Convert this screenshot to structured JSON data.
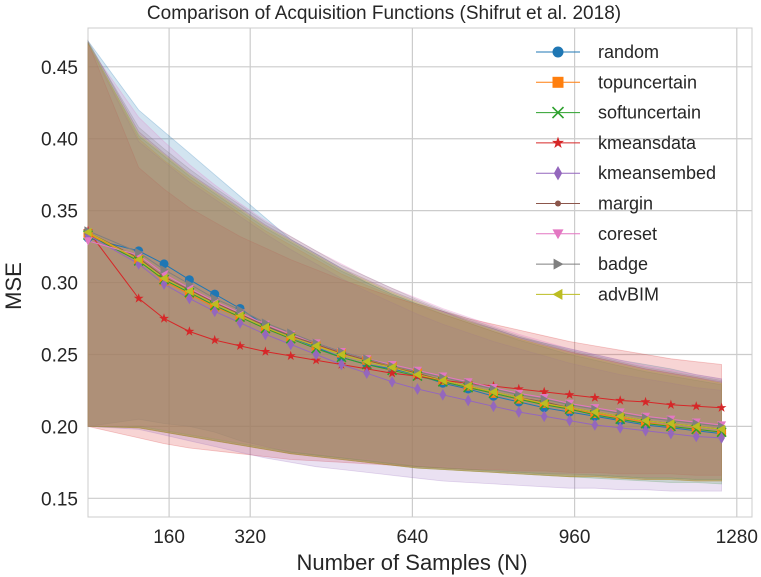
{
  "chart_data": {
    "type": "line",
    "title": "Comparison of Acquisition Functions (Shifrut et al. 2018)",
    "xlabel": "Number of Samples (N)",
    "ylabel": "MSE",
    "xlim": [
      0,
      1310
    ],
    "ylim": [
      0.137,
      0.477
    ],
    "xticks": [
      160,
      320,
      640,
      960,
      1280
    ],
    "yticks": [
      0.15,
      0.2,
      0.25,
      0.3,
      0.35,
      0.4,
      0.45
    ],
    "ytick_labels": [
      "0.15",
      "0.20",
      "0.25",
      "0.30",
      "0.35",
      "0.40",
      "0.45"
    ],
    "grid": true,
    "legend_position": "top-right",
    "x": [
      0,
      100,
      150,
      200,
      250,
      300,
      350,
      400,
      450,
      500,
      550,
      600,
      650,
      700,
      750,
      800,
      850,
      900,
      950,
      1000,
      1050,
      1100,
      1150,
      1200,
      1250
    ],
    "series": [
      {
        "name": "random",
        "color": "#1f77b4",
        "marker": "circle",
        "values": [
          0.331,
          0.322,
          0.313,
          0.302,
          0.292,
          0.282,
          0.27,
          0.262,
          0.255,
          0.248,
          0.243,
          0.24,
          0.236,
          0.23,
          0.226,
          0.221,
          0.217,
          0.213,
          0.21,
          0.207,
          0.204,
          0.201,
          0.199,
          0.197,
          0.195
        ],
        "upper": [
          0.468,
          0.42,
          0.405,
          0.39,
          0.375,
          0.36,
          0.345,
          0.33,
          0.32,
          0.31,
          0.3,
          0.292,
          0.285,
          0.28,
          0.273,
          0.268,
          0.262,
          0.258,
          0.254,
          0.25,
          0.246,
          0.243,
          0.24,
          0.236,
          0.233
        ],
        "lower": [
          0.2,
          0.205,
          0.202,
          0.2,
          0.196,
          0.19,
          0.186,
          0.182,
          0.18,
          0.178,
          0.176,
          0.174,
          0.172,
          0.171,
          0.17,
          0.169,
          0.168,
          0.167,
          0.167,
          0.166,
          0.165,
          0.164,
          0.164,
          0.163,
          0.163
        ]
      },
      {
        "name": "topuncertain",
        "color": "#ff7f0e",
        "marker": "square",
        "values": [
          0.334,
          0.316,
          0.301,
          0.292,
          0.283,
          0.276,
          0.268,
          0.262,
          0.256,
          0.251,
          0.246,
          0.242,
          0.237,
          0.232,
          0.228,
          0.223,
          0.219,
          0.216,
          0.212,
          0.209,
          0.206,
          0.203,
          0.2,
          0.198,
          0.196
        ],
        "upper": [
          0.466,
          0.4,
          0.385,
          0.372,
          0.36,
          0.348,
          0.336,
          0.326,
          0.316,
          0.306,
          0.298,
          0.291,
          0.284,
          0.278,
          0.272,
          0.266,
          0.261,
          0.256,
          0.252,
          0.248,
          0.244,
          0.24,
          0.237,
          0.234,
          0.23
        ],
        "lower": [
          0.2,
          0.199,
          0.196,
          0.193,
          0.19,
          0.187,
          0.184,
          0.181,
          0.179,
          0.177,
          0.175,
          0.173,
          0.171,
          0.17,
          0.169,
          0.168,
          0.167,
          0.166,
          0.165,
          0.165,
          0.164,
          0.163,
          0.163,
          0.162,
          0.162
        ]
      },
      {
        "name": "softuncertain",
        "color": "#2ca02c",
        "marker": "x",
        "values": [
          0.333,
          0.315,
          0.302,
          0.293,
          0.284,
          0.276,
          0.268,
          0.261,
          0.254,
          0.248,
          0.243,
          0.239,
          0.235,
          0.231,
          0.227,
          0.223,
          0.219,
          0.215,
          0.212,
          0.208,
          0.205,
          0.202,
          0.2,
          0.198,
          0.196
        ],
        "upper": [
          0.467,
          0.402,
          0.388,
          0.374,
          0.362,
          0.35,
          0.338,
          0.328,
          0.318,
          0.308,
          0.3,
          0.292,
          0.285,
          0.278,
          0.272,
          0.266,
          0.26,
          0.255,
          0.25,
          0.246,
          0.242,
          0.238,
          0.235,
          0.232,
          0.229
        ],
        "lower": [
          0.2,
          0.199,
          0.196,
          0.193,
          0.19,
          0.187,
          0.184,
          0.181,
          0.179,
          0.177,
          0.175,
          0.173,
          0.171,
          0.17,
          0.169,
          0.168,
          0.167,
          0.166,
          0.165,
          0.164,
          0.163,
          0.162,
          0.161,
          0.161,
          0.16
        ]
      },
      {
        "name": "kmeansdata",
        "color": "#d62728",
        "marker": "star",
        "values": [
          0.336,
          0.289,
          0.275,
          0.266,
          0.26,
          0.256,
          0.252,
          0.249,
          0.246,
          0.243,
          0.24,
          0.237,
          0.235,
          0.232,
          0.23,
          0.228,
          0.226,
          0.224,
          0.222,
          0.22,
          0.218,
          0.217,
          0.215,
          0.214,
          0.213
        ],
        "upper": [
          0.467,
          0.38,
          0.365,
          0.352,
          0.342,
          0.332,
          0.324,
          0.316,
          0.309,
          0.302,
          0.296,
          0.29,
          0.285,
          0.28,
          0.275,
          0.271,
          0.267,
          0.263,
          0.259,
          0.256,
          0.253,
          0.25,
          0.247,
          0.245,
          0.243
        ],
        "lower": [
          0.2,
          0.192,
          0.188,
          0.185,
          0.183,
          0.181,
          0.179,
          0.177,
          0.176,
          0.175,
          0.174,
          0.173,
          0.172,
          0.171,
          0.17,
          0.17,
          0.169,
          0.169,
          0.168,
          0.168,
          0.167,
          0.167,
          0.167,
          0.166,
          0.166
        ]
      },
      {
        "name": "kmeansembed",
        "color": "#9467bd",
        "marker": "diamond",
        "values": [
          0.333,
          0.313,
          0.299,
          0.289,
          0.28,
          0.272,
          0.264,
          0.257,
          0.25,
          0.243,
          0.237,
          0.231,
          0.226,
          0.222,
          0.218,
          0.214,
          0.21,
          0.207,
          0.204,
          0.201,
          0.199,
          0.197,
          0.195,
          0.193,
          0.192
        ],
        "upper": [
          0.466,
          0.398,
          0.384,
          0.37,
          0.358,
          0.346,
          0.334,
          0.323,
          0.313,
          0.303,
          0.294,
          0.286,
          0.278,
          0.271,
          0.265,
          0.259,
          0.254,
          0.249,
          0.244,
          0.24,
          0.236,
          0.233,
          0.23,
          0.227,
          0.225
        ],
        "lower": [
          0.2,
          0.198,
          0.194,
          0.19,
          0.186,
          0.182,
          0.178,
          0.175,
          0.172,
          0.17,
          0.168,
          0.166,
          0.164,
          0.162,
          0.161,
          0.16,
          0.159,
          0.158,
          0.157,
          0.157,
          0.156,
          0.156,
          0.155,
          0.155,
          0.155
        ]
      },
      {
        "name": "margin",
        "color": "#8c564b",
        "marker": "dot",
        "values": [
          0.335,
          0.317,
          0.304,
          0.295,
          0.286,
          0.278,
          0.27,
          0.263,
          0.257,
          0.251,
          0.246,
          0.241,
          0.237,
          0.232,
          0.228,
          0.224,
          0.22,
          0.217,
          0.213,
          0.21,
          0.207,
          0.204,
          0.202,
          0.2,
          0.198
        ],
        "upper": [
          0.468,
          0.405,
          0.39,
          0.376,
          0.364,
          0.352,
          0.34,
          0.33,
          0.32,
          0.31,
          0.302,
          0.294,
          0.287,
          0.28,
          0.274,
          0.268,
          0.262,
          0.257,
          0.252,
          0.248,
          0.244,
          0.24,
          0.237,
          0.234,
          0.231
        ],
        "lower": [
          0.2,
          0.199,
          0.196,
          0.193,
          0.19,
          0.187,
          0.184,
          0.181,
          0.179,
          0.177,
          0.175,
          0.173,
          0.171,
          0.17,
          0.169,
          0.168,
          0.167,
          0.166,
          0.165,
          0.165,
          0.164,
          0.163,
          0.163,
          0.162,
          0.162
        ]
      },
      {
        "name": "coreset",
        "color": "#e377c2",
        "marker": "triangle-down",
        "values": [
          0.329,
          0.319,
          0.306,
          0.296,
          0.287,
          0.279,
          0.271,
          0.264,
          0.258,
          0.252,
          0.247,
          0.243,
          0.239,
          0.235,
          0.231,
          0.227,
          0.223,
          0.22,
          0.216,
          0.213,
          0.21,
          0.207,
          0.205,
          0.203,
          0.201
        ],
        "upper": [
          0.465,
          0.415,
          0.398,
          0.382,
          0.368,
          0.355,
          0.343,
          0.332,
          0.322,
          0.313,
          0.304,
          0.296,
          0.289,
          0.282,
          0.276,
          0.27,
          0.264,
          0.259,
          0.254,
          0.25,
          0.246,
          0.242,
          0.239,
          0.236,
          0.233
        ],
        "lower": [
          0.2,
          0.201,
          0.198,
          0.195,
          0.192,
          0.189,
          0.186,
          0.183,
          0.181,
          0.179,
          0.177,
          0.175,
          0.173,
          0.172,
          0.171,
          0.17,
          0.169,
          0.168,
          0.167,
          0.167,
          0.166,
          0.165,
          0.165,
          0.164,
          0.164
        ]
      },
      {
        "name": "badge",
        "color": "#7f7f7f",
        "marker": "triangle-right",
        "values": [
          0.336,
          0.321,
          0.309,
          0.299,
          0.289,
          0.281,
          0.272,
          0.265,
          0.258,
          0.252,
          0.247,
          0.242,
          0.238,
          0.234,
          0.23,
          0.226,
          0.222,
          0.219,
          0.215,
          0.212,
          0.209,
          0.206,
          0.204,
          0.202,
          0.2
        ],
        "upper": [
          0.467,
          0.408,
          0.393,
          0.379,
          0.366,
          0.354,
          0.342,
          0.332,
          0.322,
          0.312,
          0.304,
          0.296,
          0.288,
          0.281,
          0.275,
          0.269,
          0.263,
          0.258,
          0.253,
          0.249,
          0.245,
          0.241,
          0.238,
          0.235,
          0.232
        ],
        "lower": [
          0.2,
          0.2,
          0.197,
          0.194,
          0.191,
          0.188,
          0.185,
          0.182,
          0.18,
          0.178,
          0.176,
          0.174,
          0.172,
          0.171,
          0.17,
          0.169,
          0.168,
          0.167,
          0.166,
          0.166,
          0.165,
          0.164,
          0.164,
          0.163,
          0.163
        ]
      },
      {
        "name": "advBIM",
        "color": "#bcbd22",
        "marker": "triangle-left",
        "values": [
          0.335,
          0.316,
          0.303,
          0.294,
          0.285,
          0.277,
          0.269,
          0.262,
          0.256,
          0.25,
          0.245,
          0.241,
          0.236,
          0.232,
          0.228,
          0.224,
          0.22,
          0.216,
          0.213,
          0.21,
          0.207,
          0.204,
          0.202,
          0.2,
          0.198
        ],
        "upper": [
          0.466,
          0.403,
          0.389,
          0.375,
          0.363,
          0.351,
          0.339,
          0.329,
          0.319,
          0.309,
          0.301,
          0.293,
          0.286,
          0.279,
          0.273,
          0.267,
          0.261,
          0.256,
          0.251,
          0.247,
          0.243,
          0.239,
          0.236,
          0.233,
          0.23
        ],
        "lower": [
          0.2,
          0.199,
          0.196,
          0.193,
          0.19,
          0.187,
          0.184,
          0.181,
          0.179,
          0.177,
          0.175,
          0.173,
          0.171,
          0.17,
          0.169,
          0.168,
          0.167,
          0.166,
          0.165,
          0.165,
          0.164,
          0.163,
          0.163,
          0.162,
          0.162
        ]
      }
    ]
  }
}
